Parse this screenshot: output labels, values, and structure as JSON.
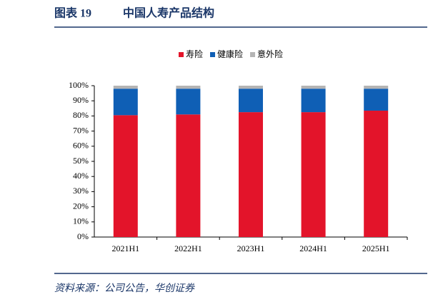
{
  "figure_label": "图表 19",
  "source": "资料来源：公司公告，华创证券",
  "chart_data": {
    "type": "stacked_bar",
    "title": "中国人寿产品结构",
    "categories": [
      "2021H1",
      "2022H1",
      "2023H1",
      "2024H1",
      "2025H1"
    ],
    "series": [
      {
        "name": "寿险",
        "color": "#e3142a",
        "values": [
          80.5,
          81,
          82.5,
          82.5,
          83.5
        ]
      },
      {
        "name": "健康险",
        "color": "#0f5fb5",
        "values": [
          17.5,
          17,
          15.5,
          15.5,
          14.5
        ]
      },
      {
        "name": "意外险",
        "color": "#b4b4b4",
        "values": [
          2,
          2,
          2,
          2,
          2
        ]
      }
    ],
    "ylim": [
      0,
      100
    ],
    "yticks": [
      {
        "value": 0,
        "label": "0%"
      },
      {
        "value": 10,
        "label": "10%"
      },
      {
        "value": 20,
        "label": "20%"
      },
      {
        "value": 30,
        "label": "30%"
      },
      {
        "value": 40,
        "label": "40%"
      },
      {
        "value": 50,
        "label": "50%"
      },
      {
        "value": 60,
        "label": "60%"
      },
      {
        "value": 70,
        "label": "70%"
      },
      {
        "value": 80,
        "label": "80%"
      },
      {
        "value": 90,
        "label": "90%"
      },
      {
        "value": 100,
        "label": "100%"
      }
    ],
    "legend": "top",
    "grid": false
  }
}
